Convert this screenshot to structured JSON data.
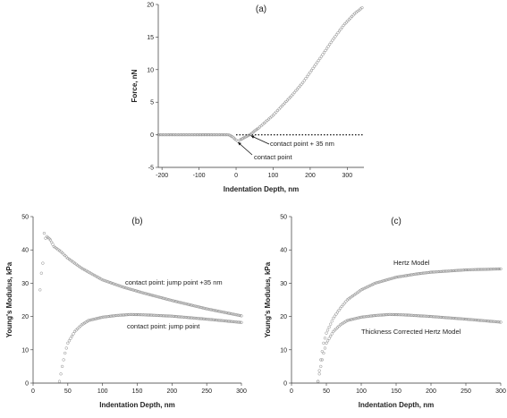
{
  "chart_data": [
    {
      "id": "a",
      "type": "scatter",
      "title": "(a)",
      "xlabel": "Indentation Depth, nm",
      "ylabel": "Force, nN",
      "xlim": [
        -210,
        345
      ],
      "ylim": [
        -5,
        20
      ],
      "xticks": [
        -200,
        -100,
        0,
        100,
        200,
        300
      ],
      "yticks": [
        -5,
        0,
        5,
        10,
        15,
        20
      ],
      "grid": false,
      "series": [
        {
          "values": [
            [
              -210,
              0
            ],
            [
              -150,
              0
            ],
            [
              -100,
              0
            ],
            [
              -50,
              0
            ],
            [
              -20,
              0
            ],
            [
              -10,
              -0.3
            ],
            [
              0,
              -0.8
            ],
            [
              5,
              -1.0
            ],
            [
              10,
              -0.8
            ],
            [
              20,
              -0.5
            ],
            [
              30,
              -0.2
            ],
            [
              40,
              0.1
            ],
            [
              50,
              0.6
            ],
            [
              60,
              1.0
            ],
            [
              80,
              2.0
            ],
            [
              100,
              3.0
            ],
            [
              120,
              4.2
            ],
            [
              150,
              6.0
            ],
            [
              180,
              8.0
            ],
            [
              200,
              9.6
            ],
            [
              230,
              12.0
            ],
            [
              260,
              14.5
            ],
            [
              290,
              16.8
            ],
            [
              320,
              18.6
            ],
            [
              340,
              19.5
            ]
          ]
        }
      ],
      "reference_lines": [
        {
          "style": "dotted",
          "y": 0,
          "x_range": [
            0,
            345
          ]
        }
      ],
      "annotations": [
        {
          "text": "contact point + 35 nm",
          "arrow_to": [
            35,
            0
          ]
        },
        {
          "text": "contact point",
          "arrow_to": [
            0,
            -1
          ]
        }
      ]
    },
    {
      "id": "b",
      "type": "scatter",
      "title": "(b)",
      "xlabel": "Indentation Depth, nm",
      "ylabel": "Young's Modulus, kPa",
      "xlim": [
        0,
        300
      ],
      "ylim": [
        0,
        50
      ],
      "xticks": [
        0,
        50,
        100,
        150,
        200,
        250,
        300
      ],
      "yticks": [
        0,
        10,
        20,
        30,
        40,
        50
      ],
      "grid": false,
      "series": [
        {
          "name": "contact point: jump point +35 nm",
          "values": [
            [
              10,
              28
            ],
            [
              12,
              33
            ],
            [
              14,
              36
            ],
            [
              16,
              45
            ],
            [
              18,
              43.5
            ],
            [
              20,
              44
            ],
            [
              25,
              43
            ],
            [
              30,
              41
            ],
            [
              40,
              39.5
            ],
            [
              50,
              37.5
            ],
            [
              70,
              34.5
            ],
            [
              100,
              31
            ],
            [
              130,
              28.8
            ],
            [
              160,
              27
            ],
            [
              200,
              24.8
            ],
            [
              250,
              22.3
            ],
            [
              300,
              20.2
            ]
          ]
        },
        {
          "name": "contact point: jump point",
          "values": [
            [
              38,
              0.5
            ],
            [
              42,
              5
            ],
            [
              46,
              9
            ],
            [
              50,
              12
            ],
            [
              60,
              15.5
            ],
            [
              70,
              17.5
            ],
            [
              80,
              18.8
            ],
            [
              100,
              19.8
            ],
            [
              120,
              20.3
            ],
            [
              140,
              20.6
            ],
            [
              160,
              20.5
            ],
            [
              200,
              20.1
            ],
            [
              250,
              19.2
            ],
            [
              300,
              18.2
            ]
          ]
        }
      ],
      "annotations": [
        {
          "text": "contact point: jump point +35 nm"
        },
        {
          "text": "contact point: jump point"
        }
      ]
    },
    {
      "id": "c",
      "type": "scatter",
      "title": "(c)",
      "xlabel": "Indentation Depth, nm",
      "ylabel": "Young's Modulus, kPa",
      "xlim": [
        0,
        300
      ],
      "ylim": [
        0,
        50
      ],
      "xticks": [
        0,
        50,
        100,
        150,
        200,
        250,
        300
      ],
      "yticks": [
        0,
        10,
        20,
        30,
        40,
        50
      ],
      "grid": false,
      "series": [
        {
          "name": "Hertz Model",
          "values": [
            [
              38,
              0.5
            ],
            [
              42,
              7
            ],
            [
              46,
              12
            ],
            [
              50,
              15
            ],
            [
              60,
              19.5
            ],
            [
              70,
              22.5
            ],
            [
              80,
              25
            ],
            [
              100,
              28
            ],
            [
              120,
              30
            ],
            [
              150,
              31.8
            ],
            [
              180,
              32.8
            ],
            [
              200,
              33.3
            ],
            [
              250,
              34
            ],
            [
              300,
              34.3
            ]
          ]
        },
        {
          "name": "Thickness Corrected Hertz Model",
          "values": [
            [
              38,
              0.5
            ],
            [
              42,
              5
            ],
            [
              46,
              9
            ],
            [
              50,
              12
            ],
            [
              60,
              15.5
            ],
            [
              70,
              17.5
            ],
            [
              80,
              18.8
            ],
            [
              100,
              19.8
            ],
            [
              120,
              20.3
            ],
            [
              140,
              20.6
            ],
            [
              160,
              20.5
            ],
            [
              200,
              20
            ],
            [
              250,
              19.2
            ],
            [
              300,
              18.3
            ]
          ]
        }
      ],
      "annotations": [
        {
          "text": "Hertz Model"
        },
        {
          "text": "Thickness Corrected Hertz Model"
        }
      ]
    }
  ]
}
